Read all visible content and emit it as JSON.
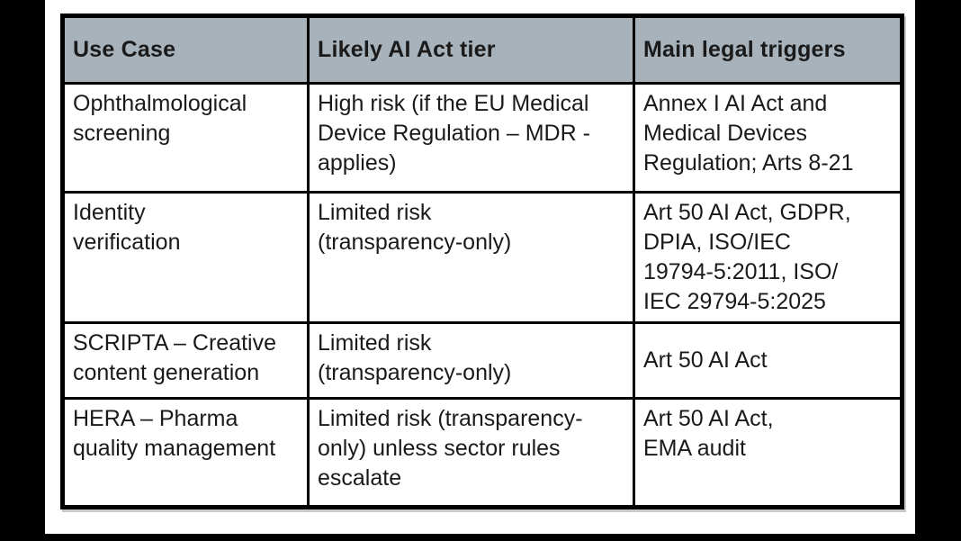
{
  "page": {
    "background": "#ffffff",
    "frame_color": "#000000"
  },
  "table": {
    "colors": {
      "header_bg": "#a8b2ba",
      "border": "#000000",
      "text": "#1a1a1a"
    },
    "columns": [
      "Use Case",
      "Likely AI Act tier",
      "Main legal triggers"
    ],
    "rows": [
      {
        "use_case": "Ophthalmological\nscreening",
        "tier": "High risk (if the EU Medical\nDevice Regulation – MDR -\napplies)",
        "triggers": "Annex I AI Act and\nMedical Devices\nRegulation; Arts 8-21"
      },
      {
        "use_case": "Identity\nverification",
        "tier": "Limited risk\n(transparency-only)",
        "triggers": "Art 50 AI Act, GDPR,\nDPIA, ISO/IEC\n19794-5:2011, ISO/\nIEC 29794-5:2025"
      },
      {
        "use_case": "SCRIPTA – Creative\ncontent generation",
        "tier": "Limited risk\n(transparency-only)",
        "triggers": "Art 50 AI Act"
      },
      {
        "use_case": "HERA – Pharma\nquality management",
        "tier": "Limited risk (transparency-\nonly) unless sector rules\nescalate",
        "triggers": "Art 50 AI Act,\nEMA audit"
      }
    ]
  }
}
